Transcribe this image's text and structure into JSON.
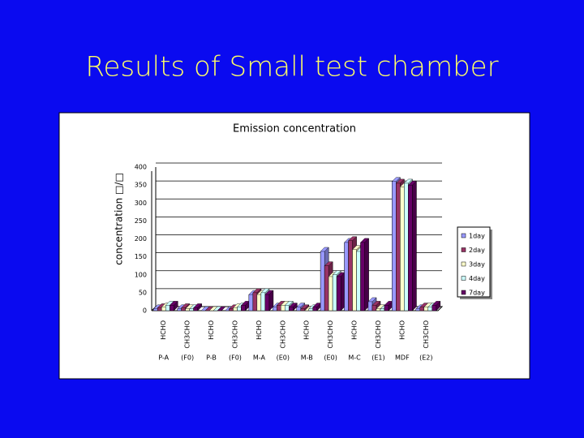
{
  "slide_title": "Results of Small test chamber",
  "chart_data": {
    "type": "bar",
    "title": "Emission concentration",
    "y_label": "concentration □/□",
    "categories": [
      "HCHO",
      "CH3CHO",
      "HCHO",
      "CH3CHO",
      "HCHO",
      "CH3CHO",
      "HCHO",
      "CH3CHO",
      "HCHO",
      "CH3CHO",
      "HCHO",
      "CH3CHO"
    ],
    "groups": [
      "P-A",
      "(F0)",
      "P-B",
      "(F0)",
      "M-A",
      "(E0)",
      "M-B",
      "(E0)",
      "M-C",
      "(E1)",
      "MDF",
      "(E2)"
    ],
    "series": [
      {
        "name": "1day",
        "color": "#9999ff",
        "values": [
          5,
          5,
          0,
          0,
          45,
          10,
          10,
          165,
          190,
          25,
          360,
          5
        ]
      },
      {
        "name": "2day",
        "color": "#993366",
        "values": [
          8,
          8,
          0,
          5,
          50,
          15,
          5,
          125,
          195,
          15,
          355,
          10
        ]
      },
      {
        "name": "3day",
        "color": "#ffffcc",
        "values": [
          10,
          5,
          0,
          8,
          45,
          15,
          0,
          95,
          170,
          5,
          345,
          10
        ]
      },
      {
        "name": "4day",
        "color": "#ccffff",
        "values": [
          15,
          5,
          0,
          10,
          50,
          15,
          5,
          100,
          165,
          5,
          355,
          10
        ]
      },
      {
        "name": "7day",
        "color": "#660066",
        "values": [
          15,
          8,
          0,
          15,
          45,
          10,
          10,
          95,
          190,
          15,
          350,
          15
        ]
      }
    ],
    "ylim": [
      0,
      400
    ],
    "yticks": [
      0,
      50,
      100,
      150,
      200,
      250,
      300,
      350,
      400
    ],
    "grid": true,
    "legend": "right"
  }
}
